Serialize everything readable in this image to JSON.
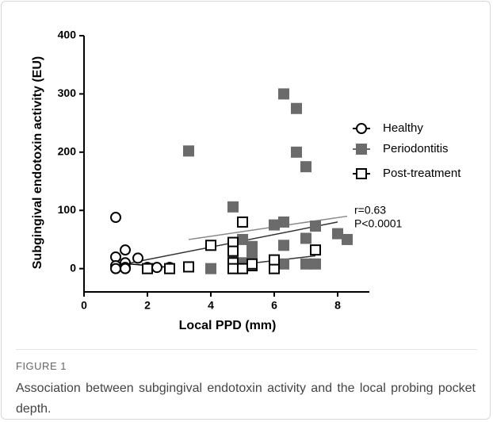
{
  "chart_data": {
    "type": "scatter",
    "xlabel": "Local PPD (mm)",
    "ylabel": "Subgingival endotoxin activity (EU)",
    "xlim": [
      0,
      9
    ],
    "ylim": [
      -40,
      400
    ],
    "xticks": [
      0,
      2,
      4,
      6,
      8
    ],
    "yticks": [
      0,
      100,
      200,
      300,
      400
    ],
    "series": [
      {
        "name": "Healthy",
        "color": "#000000",
        "marker": "open-circle",
        "x": [
          1,
          1,
          1,
          1,
          1.3,
          1.3,
          1.3,
          1.3,
          1.7,
          2,
          2.3,
          2.7
        ],
        "values": [
          88,
          20,
          5,
          0,
          32,
          10,
          2,
          0,
          18,
          2,
          2,
          2
        ]
      },
      {
        "name": "Periodontitis",
        "color": "#6b6b6b",
        "marker": "filled-square",
        "x": [
          3.3,
          6.3,
          6.7,
          6.7,
          7,
          4.7,
          6,
          6.3,
          5,
          5.3,
          7,
          7.3,
          8,
          8.3,
          4.7,
          5,
          5.3,
          6,
          6.3,
          7,
          7.3,
          4,
          4.7,
          6.3,
          5.3
        ],
        "values": [
          202,
          300,
          275,
          200,
          175,
          106,
          75,
          80,
          50,
          38,
          52,
          73,
          60,
          50,
          15,
          10,
          5,
          10,
          8,
          8,
          8,
          0,
          5,
          40,
          25
        ]
      },
      {
        "name": "Post-treatment",
        "color": "#000000",
        "marker": "open-square",
        "x": [
          3.3,
          2,
          2.7,
          4,
          4.7,
          4.7,
          5,
          4.7,
          4.7,
          5,
          5.3,
          6,
          6,
          7.3,
          5.3,
          6
        ],
        "values": [
          3,
          0,
          0,
          40,
          45,
          30,
          80,
          10,
          0,
          0,
          5,
          5,
          0,
          32,
          8,
          15
        ]
      }
    ],
    "fit_lines": [
      {
        "color": "#000000",
        "x": [
          1,
          2.7
        ],
        "y": [
          10,
          2
        ]
      },
      {
        "color": "#888888",
        "x": [
          3.3,
          8.3
        ],
        "y": [
          50,
          90
        ]
      },
      {
        "color": "#333333",
        "x": [
          1.3,
          8
        ],
        "y": [
          8,
          80
        ]
      },
      {
        "color": "#333333",
        "x": [
          4.6,
          7.3
        ],
        "y": [
          5,
          22
        ]
      }
    ],
    "annotations": [
      "r=0.63",
      "P<0.0001"
    ]
  },
  "figure": {
    "label": "FIGURE 1",
    "caption": "Association between subgingival endotoxin activity and the local probing pocket depth."
  }
}
